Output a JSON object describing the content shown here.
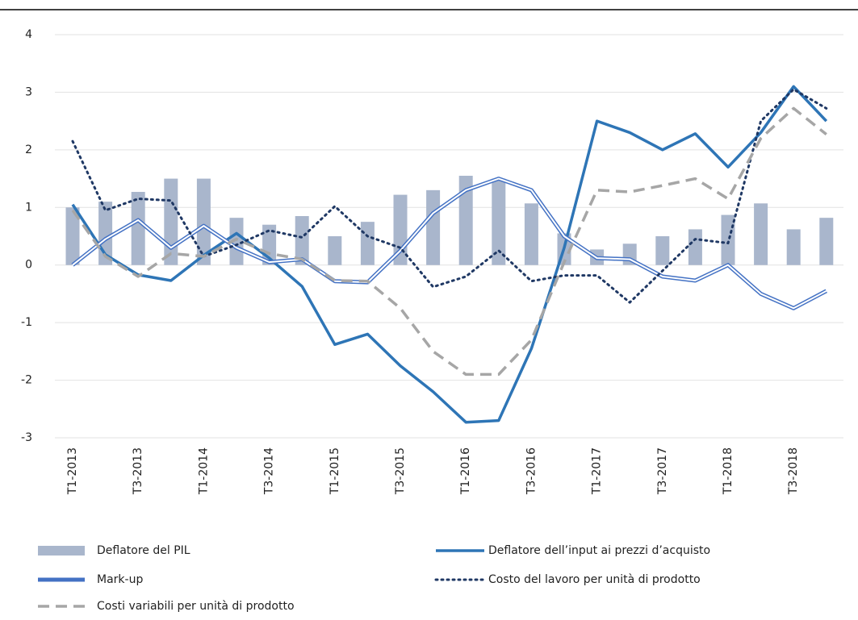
{
  "chart_data": {
    "type": "combo",
    "categories": [
      "T1-2013",
      null,
      "T3-2013",
      null,
      "T1-2014",
      null,
      "T3-2014",
      null,
      "T1-2015",
      null,
      "T3-2015",
      null,
      "T1-2016",
      null,
      "T3-2016",
      null,
      "T1-2017",
      null,
      "T3-2017",
      null,
      "T1-2018",
      null,
      "T3-2018",
      null
    ],
    "ylim": [
      -3,
      4
    ],
    "yticks": [
      -3,
      -2,
      -1,
      0,
      1,
      2,
      3,
      4
    ],
    "grid": true,
    "series": [
      {
        "name": "Deflatore del  PIL",
        "type": "bar",
        "style": "bar",
        "color": "#a9b6cc",
        "values": [
          1.0,
          1.1,
          1.27,
          1.5,
          1.5,
          0.82,
          0.7,
          0.85,
          0.5,
          0.75,
          1.22,
          1.3,
          1.55,
          1.5,
          1.07,
          0.55,
          0.27,
          0.37,
          0.5,
          0.62,
          0.87,
          1.07,
          0.62,
          0.82
        ]
      },
      {
        "name": "Deflatore dell’input ai prezzi d’acquisto",
        "type": "line",
        "style": "solid",
        "color": "#2e75b6",
        "values": [
          1.05,
          0.18,
          -0.17,
          -0.27,
          0.17,
          0.55,
          0.12,
          -0.37,
          -1.38,
          -1.2,
          -1.75,
          -2.2,
          -2.73,
          -2.7,
          -1.45,
          0.3,
          2.5,
          2.3,
          2.0,
          2.28,
          1.7,
          2.3,
          3.1,
          2.5
        ]
      },
      {
        "name": "Mark-up",
        "type": "line",
        "style": "double",
        "color": "#4472c4",
        "values": [
          0.0,
          0.45,
          0.78,
          0.3,
          0.68,
          0.3,
          0.05,
          0.1,
          -0.28,
          -0.3,
          0.25,
          0.9,
          1.3,
          1.5,
          1.3,
          0.5,
          0.12,
          0.1,
          -0.2,
          -0.27,
          0.0,
          -0.5,
          -0.75,
          -0.45
        ]
      },
      {
        "name": "Costo del lavoro per unità di prodotto",
        "type": "line",
        "style": "dotted",
        "color": "#1f3864",
        "values": [
          2.15,
          0.95,
          1.15,
          1.12,
          0.15,
          0.35,
          0.6,
          0.48,
          1.02,
          0.5,
          0.3,
          -0.38,
          -0.2,
          0.25,
          -0.28,
          -0.18,
          -0.18,
          -0.65,
          -0.1,
          0.45,
          0.38,
          2.5,
          3.05,
          2.72
        ]
      },
      {
        "name": "Costi variabili per unità di prodotto",
        "type": "line",
        "style": "dashed",
        "color": "#a6a6a6",
        "values": [
          0.95,
          0.15,
          -0.2,
          0.2,
          0.15,
          0.45,
          0.2,
          0.1,
          -0.27,
          -0.28,
          -0.75,
          -1.5,
          -1.9,
          -1.9,
          -1.3,
          0.05,
          1.3,
          1.27,
          1.38,
          1.5,
          1.15,
          2.2,
          2.72,
          2.27
        ]
      }
    ]
  }
}
